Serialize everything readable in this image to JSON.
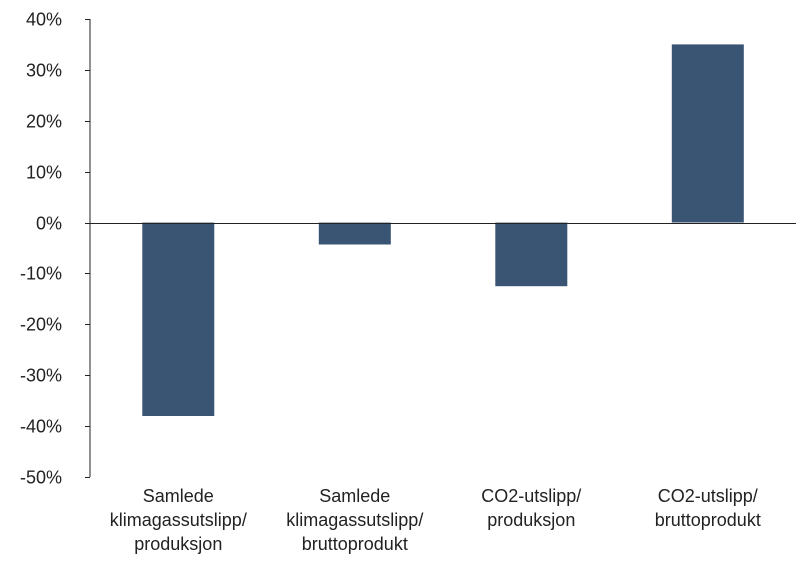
{
  "chart_data": {
    "type": "bar",
    "title": "",
    "xlabel": "",
    "ylabel": "",
    "categories": [
      [
        "Samlede",
        "klimagassutslipp/",
        "produksjon"
      ],
      [
        "Samlede",
        "klimagassutslipp/",
        "bruttoprodukt"
      ],
      [
        "CO2-utslipp/",
        "produksjon"
      ],
      [
        "CO2-utslipp/",
        "bruttoprodukt"
      ]
    ],
    "values": [
      -38,
      -4.3,
      -12.5,
      35
    ],
    "ylim": [
      -50,
      40
    ],
    "yticks": [
      40,
      30,
      20,
      10,
      0,
      -10,
      -20,
      -30,
      -40,
      -50
    ],
    "ytick_labels": [
      "40%",
      "30%",
      "20%",
      "10%",
      "0%",
      "-10%",
      "-20%",
      "-30%",
      "-40%",
      "-50%"
    ],
    "grid": false,
    "legend": "none",
    "colors": {
      "bar": "#3a5573",
      "axis": "#222222",
      "text": "#222222"
    }
  }
}
